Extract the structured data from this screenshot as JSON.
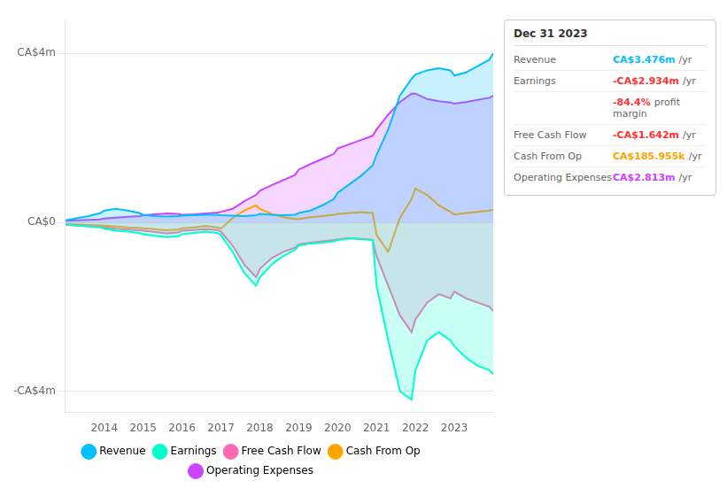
{
  "chart_data": {
    "type": "line",
    "x": [
      2013.0,
      2013.3,
      2013.6,
      2013.9,
      2014.0,
      2014.3,
      2014.6,
      2014.9,
      2015.0,
      2015.3,
      2015.6,
      2015.9,
      2016.0,
      2016.3,
      2016.6,
      2016.9,
      2017.0,
      2017.3,
      2017.6,
      2017.9,
      2018.0,
      2018.3,
      2018.6,
      2018.9,
      2019.0,
      2019.3,
      2019.6,
      2019.9,
      2020.0,
      2020.3,
      2020.6,
      2020.9,
      2021.0,
      2021.3,
      2021.6,
      2021.9,
      2022.0,
      2022.3,
      2022.6,
      2022.9,
      2023.0,
      2023.3,
      2023.6,
      2023.9,
      2024.0
    ],
    "series": [
      {
        "name": "Revenue",
        "color": "#00bfff",
        "type": "area",
        "values": [
          0.05,
          0.1,
          0.15,
          0.22,
          0.28,
          0.32,
          0.28,
          0.22,
          0.18,
          0.15,
          0.14,
          0.15,
          0.16,
          0.17,
          0.18,
          0.18,
          0.17,
          0.16,
          0.15,
          0.17,
          0.2,
          0.18,
          0.17,
          0.18,
          0.22,
          0.28,
          0.4,
          0.55,
          0.7,
          0.9,
          1.1,
          1.35,
          1.6,
          2.2,
          3.0,
          3.4,
          3.5,
          3.6,
          3.65,
          3.6,
          3.476,
          3.55,
          3.7,
          3.85,
          4.0
        ]
      },
      {
        "name": "Earnings",
        "color": "#00ffcc",
        "type": "area",
        "values": [
          -0.05,
          -0.08,
          -0.1,
          -0.12,
          -0.15,
          -0.2,
          -0.22,
          -0.25,
          -0.28,
          -0.32,
          -0.35,
          -0.33,
          -0.28,
          -0.25,
          -0.22,
          -0.25,
          -0.3,
          -0.7,
          -1.2,
          -1.5,
          -1.3,
          -1.0,
          -0.8,
          -0.65,
          -0.55,
          -0.5,
          -0.48,
          -0.45,
          -0.42,
          -0.38,
          -0.4,
          -0.42,
          -1.5,
          -2.8,
          -4.0,
          -4.2,
          -3.5,
          -2.8,
          -2.6,
          -2.8,
          -2.934,
          -3.2,
          -3.4,
          -3.5,
          -3.6
        ]
      },
      {
        "name": "Free Cash Flow",
        "color": "#ff69b4",
        "type": "area",
        "values": [
          -0.05,
          -0.07,
          -0.09,
          -0.11,
          -0.12,
          -0.15,
          -0.17,
          -0.19,
          -0.2,
          -0.23,
          -0.26,
          -0.24,
          -0.2,
          -0.18,
          -0.16,
          -0.18,
          -0.22,
          -0.55,
          -1.0,
          -1.3,
          -1.1,
          -0.85,
          -0.7,
          -0.6,
          -0.52,
          -0.48,
          -0.45,
          -0.42,
          -0.4,
          -0.37,
          -0.39,
          -0.41,
          -0.8,
          -1.5,
          -2.2,
          -2.6,
          -2.3,
          -1.9,
          -1.7,
          -1.8,
          -1.642,
          -1.8,
          -1.9,
          -2.0,
          -2.1
        ]
      },
      {
        "name": "Cash From Op",
        "color": "#ffa500",
        "type": "line",
        "values": [
          -0.04,
          -0.05,
          -0.06,
          -0.07,
          -0.08,
          -0.1,
          -0.12,
          -0.13,
          -0.14,
          -0.16,
          -0.19,
          -0.17,
          -0.14,
          -0.12,
          -0.09,
          -0.12,
          -0.15,
          0.1,
          0.28,
          0.4,
          0.32,
          0.2,
          0.12,
          0.08,
          0.08,
          0.12,
          0.15,
          0.18,
          0.2,
          0.22,
          0.24,
          0.22,
          -0.3,
          -0.7,
          0.1,
          0.55,
          0.8,
          0.65,
          0.4,
          0.25,
          0.186,
          0.22,
          0.25,
          0.28,
          0.3
        ]
      },
      {
        "name": "Operating Expenses",
        "color": "#cc44ff",
        "type": "area",
        "values": [
          0.04,
          0.05,
          0.06,
          0.07,
          0.09,
          0.11,
          0.13,
          0.15,
          0.17,
          0.19,
          0.21,
          0.2,
          0.18,
          0.19,
          0.21,
          0.23,
          0.25,
          0.32,
          0.5,
          0.65,
          0.75,
          0.88,
          1.0,
          1.12,
          1.25,
          1.38,
          1.5,
          1.62,
          1.75,
          1.85,
          1.95,
          2.05,
          2.2,
          2.55,
          2.85,
          3.05,
          3.05,
          2.92,
          2.87,
          2.84,
          2.813,
          2.85,
          2.9,
          2.95,
          3.0
        ]
      }
    ],
    "xlim": [
      2013,
      2024
    ],
    "xticks": [
      2014,
      2015,
      2016,
      2017,
      2018,
      2019,
      2020,
      2021,
      2022,
      2023
    ],
    "ylim": [
      -4.5,
      4.8
    ],
    "yticks": [
      {
        "value": -4,
        "label": "-CA$4m"
      },
      {
        "value": 0,
        "label": "CA$0"
      },
      {
        "value": 4,
        "label": "CA$4m"
      }
    ],
    "grid": true,
    "legend": "bottom",
    "annotations": [
      {
        "text": "Dec 31 2023"
      },
      {
        "label": "Revenue",
        "value": "CA$3.476m",
        "unit": "/yr",
        "color": "#00bfff"
      },
      {
        "label": "Earnings",
        "value": "-CA$2.934m",
        "unit": "/yr",
        "color": "#ff3333"
      },
      {
        "value": "-84.4%",
        "unit": "profit margin",
        "color": "#ff3333"
      },
      {
        "label": "Free Cash Flow",
        "value": "-CA$1.642m",
        "unit": "/yr",
        "color": "#ff3333"
      },
      {
        "label": "Cash From Op",
        "value": "CA$185.955k",
        "unit": "/yr",
        "color": "#ffa500"
      },
      {
        "label": "Operating Expenses",
        "value": "CA$2.813m",
        "unit": "/yr",
        "color": "#cc44ff"
      }
    ]
  }
}
